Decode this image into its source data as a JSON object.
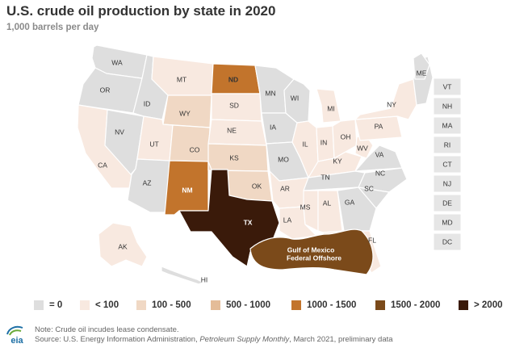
{
  "header": {
    "title": "U.S. crude oil production by state in 2020",
    "subtitle": "1,000 barrels per day"
  },
  "colors": {
    "zero": "#dedede",
    "lt100": "#f8e9e0",
    "100-500": "#f0d8c4",
    "500-1000": "#e4bc98",
    "1000-1500": "#c2742c",
    "1500-2000": "#7b4a1a",
    "gt2000": "#3a1a0a"
  },
  "legend": [
    {
      "label": "= 0",
      "color_key": "zero"
    },
    {
      "label": "< 100",
      "color_key": "lt100"
    },
    {
      "label": "100 - 500",
      "color_key": "100-500"
    },
    {
      "label": "500 - 1000",
      "color_key": "500-1000"
    },
    {
      "label": "1000 - 1500",
      "color_key": "1000-1500"
    },
    {
      "label": "1500 - 2000",
      "color_key": "1500-2000"
    },
    {
      "label": "> 2000",
      "color_key": "gt2000"
    }
  ],
  "map": {
    "state_labels": {
      "WA": "WA",
      "OR": "OR",
      "CA": "CA",
      "NV": "NV",
      "ID": "ID",
      "MT": "MT",
      "WY": "WY",
      "UT": "UT",
      "CO": "CO",
      "AZ": "AZ",
      "NM": "NM",
      "ND": "ND",
      "SD": "SD",
      "NE": "NE",
      "KS": "KS",
      "OK": "OK",
      "TX": "TX",
      "MN": "MN",
      "IA": "IA",
      "MO": "MO",
      "AR": "AR",
      "LA": "LA",
      "WI": "WI",
      "IL": "IL",
      "MS": "MS",
      "MI": "MI",
      "IN": "IN",
      "KY": "KY",
      "TN": "TN",
      "AL": "AL",
      "OH": "OH",
      "WV": "WV",
      "GA": "GA",
      "FL": "FL",
      "VA": "VA",
      "NC": "NC",
      "SC": "SC",
      "PA": "PA",
      "NY": "NY",
      "ME": "ME",
      "AK": "AK",
      "HI": "HI"
    },
    "gulf_label_line1": "Gulf of Mexico",
    "gulf_label_line2": "Federal Offshore",
    "small_states": [
      "VT",
      "NH",
      "MA",
      "RI",
      "CT",
      "NJ",
      "DE",
      "MD",
      "DC"
    ]
  },
  "footer": {
    "logo_text": "eia",
    "note": "Note: Crude oil incudes lease condensate.",
    "source_prefix": "Source: U.S. Energy Information Administration, ",
    "source_publication": "Petroleum Supply Monthly",
    "source_suffix": ", March 2021, preliminary data"
  }
}
